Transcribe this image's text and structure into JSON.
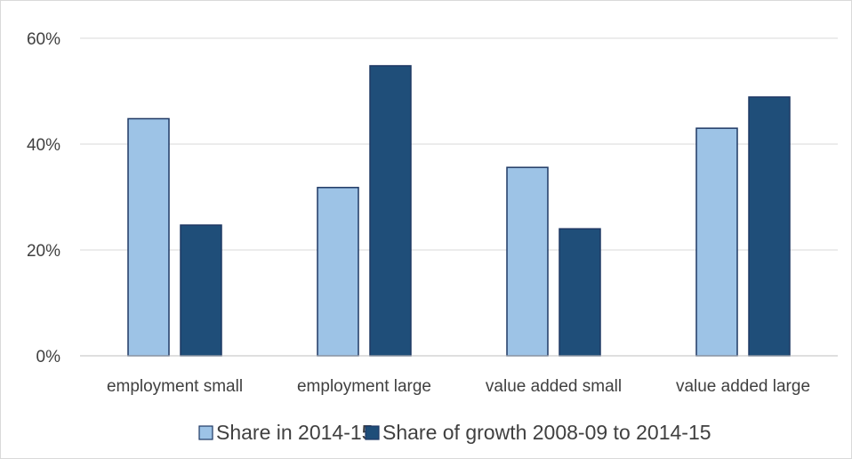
{
  "chart_data": {
    "type": "bar",
    "categories": [
      "employment small",
      "employment large",
      "value added small",
      "value added large"
    ],
    "series": [
      {
        "name": "Share in 2014-15",
        "values": [
          44.8,
          31.8,
          35.6,
          43.0
        ],
        "color": "#9dc3e6"
      },
      {
        "name": "Share of growth 2008-09 to 2014-15",
        "values": [
          24.7,
          54.8,
          24.0,
          48.9
        ],
        "color": "#1f4e79"
      }
    ],
    "ylim": [
      0,
      60
    ],
    "yticks": [
      0,
      20,
      40,
      60
    ],
    "ytick_labels": [
      "0%",
      "20%",
      "40%",
      "60%"
    ],
    "grid": true,
    "legend_position": "bottom"
  }
}
